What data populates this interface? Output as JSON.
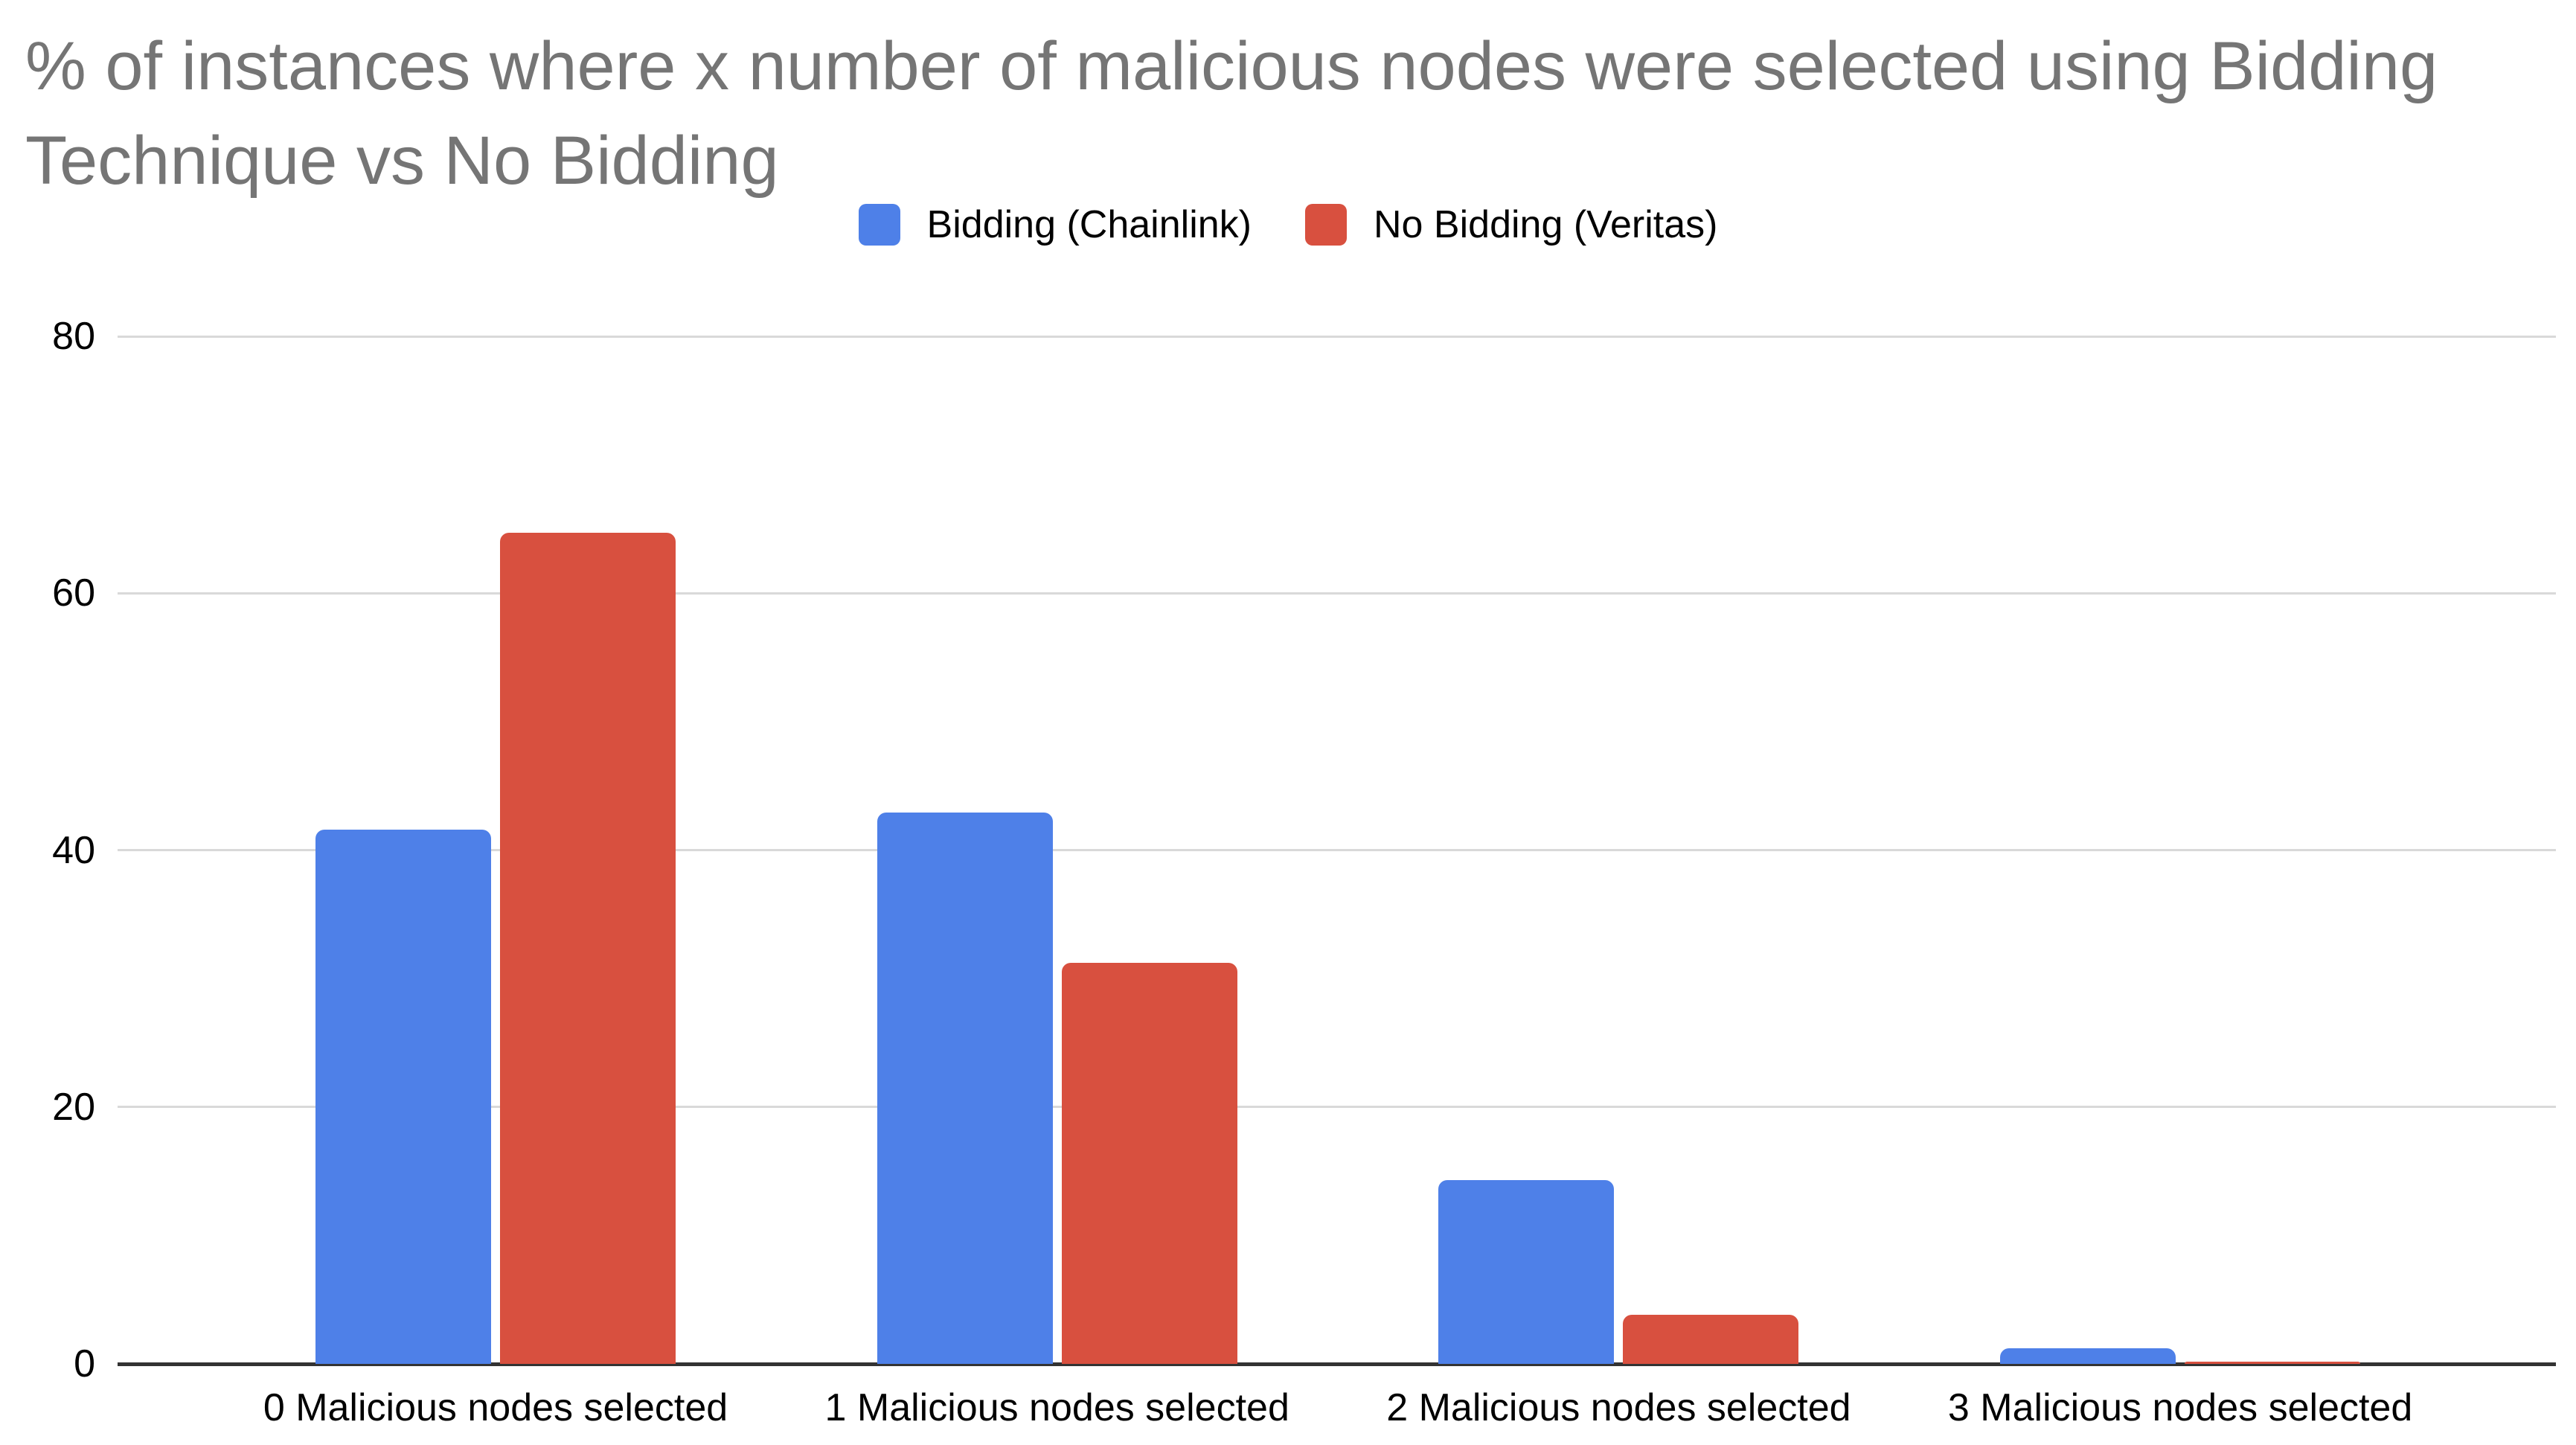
{
  "title": {
    "line1": "% of instances where x number of malicious nodes were selected using Bidding",
    "line2": "Technique vs No Bidding"
  },
  "legend": {
    "items": [
      {
        "label": "Bidding (Chainlink)",
        "color": "#4E80E8"
      },
      {
        "label": "No Bidding (Veritas)",
        "color": "#D8503F"
      }
    ]
  },
  "colors": {
    "title_text": "#757575",
    "axis_label_text": "#000000",
    "gridline": "#d9d9d9",
    "axis_line": "#333333",
    "series_blue": "#4E80E8",
    "series_red": "#D8503F",
    "background": "#ffffff"
  },
  "chart_data": {
    "type": "bar",
    "title": "% of instances where x number of malicious nodes were selected using Bidding Technique vs No Bidding",
    "categories": [
      "0 Malicious nodes selected",
      "1 Malicious nodes selected",
      "2 Malicious nodes selected",
      "3 Malicious nodes selected"
    ],
    "series": [
      {
        "name": "Bidding (Chainlink)",
        "color": "#4E80E8",
        "values": [
          41.6,
          42.9,
          14.3,
          1.2
        ]
      },
      {
        "name": "No Bidding (Veritas)",
        "color": "#D8503F",
        "values": [
          64.7,
          31.2,
          3.8,
          0.2
        ]
      }
    ],
    "xlabel": "",
    "ylabel": "",
    "ylim": [
      0,
      80
    ],
    "yticks": [
      0,
      20,
      40,
      60,
      80
    ],
    "grid": "horizontal",
    "legend_position": "top"
  }
}
